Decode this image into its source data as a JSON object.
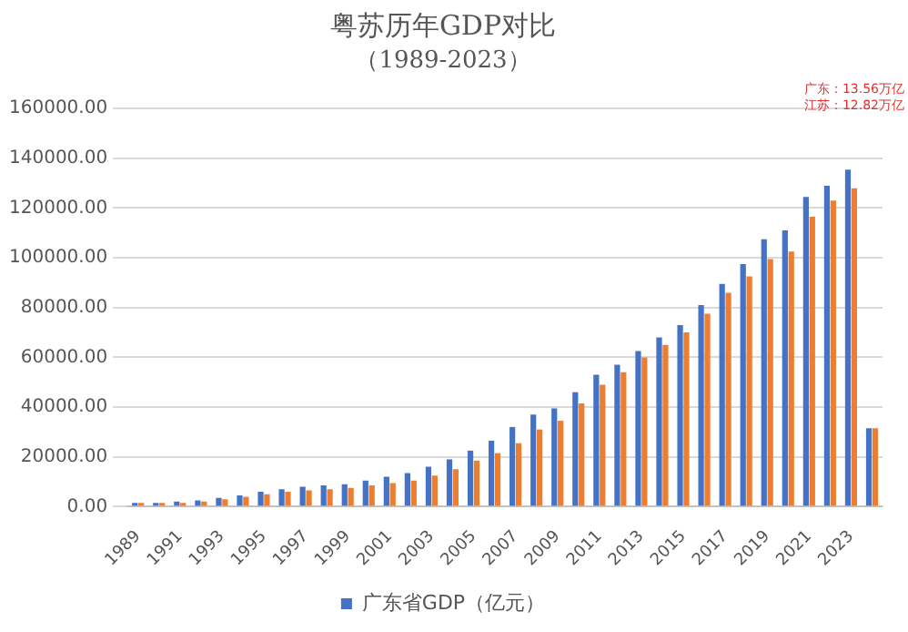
{
  "chart_data": {
    "type": "bar",
    "title": "粤苏历年GDP对比",
    "subtitle": "（1989-2023）",
    "categories": [
      "1989",
      null,
      "1991",
      null,
      "1993",
      null,
      "1995",
      null,
      "1997",
      null,
      "1999",
      null,
      "2001",
      null,
      "2003",
      null,
      "2005",
      null,
      "2007",
      null,
      "2009",
      null,
      "2011",
      null,
      "2013",
      null,
      "2015",
      null,
      "2017",
      null,
      "2019",
      null,
      "2021",
      null,
      "2023",
      null
    ],
    "series": [
      {
        "name": "广东省GDP（亿元）",
        "color": "#4472c4",
        "values": [
          1500,
          1500,
          2000,
          2500,
          3500,
          4500,
          6000,
          7000,
          8000,
          8500,
          9000,
          10500,
          12000,
          13500,
          16000,
          19000,
          22500,
          26500,
          32000,
          37000,
          39500,
          46000,
          53000,
          57000,
          62500,
          68000,
          73000,
          81000,
          89500,
          97500,
          107500,
          111000,
          124500,
          129000,
          135500,
          31500
        ]
      },
      {
        "color": "#ed7d31",
        "values": [
          1500,
          1500,
          1500,
          2000,
          3000,
          4000,
          5000,
          6000,
          6500,
          7000,
          7500,
          8500,
          9500,
          10500,
          12500,
          15000,
          18500,
          21500,
          25500,
          31000,
          34500,
          41500,
          49000,
          54000,
          60000,
          65000,
          70000,
          77500,
          86000,
          92500,
          99500,
          102500,
          116500,
          123000,
          128000,
          31500
        ]
      }
    ],
    "ylim": [
      0,
      160000
    ],
    "yticks": [
      {
        "value": 0,
        "label": "0.00"
      },
      {
        "value": 20000,
        "label": "20000.00"
      },
      {
        "value": 40000,
        "label": "40000.00"
      },
      {
        "value": 60000,
        "label": "60000.00"
      },
      {
        "value": 80000,
        "label": "80000.00"
      },
      {
        "value": 100000,
        "label": "100000.00"
      },
      {
        "value": 120000,
        "label": "120000.00"
      },
      {
        "value": 140000,
        "label": "140000.00"
      },
      {
        "value": 160000,
        "label": "160000.00"
      }
    ],
    "grid": "y",
    "legend": "bottom",
    "annotations": [
      "广东：13.56万亿",
      "江苏：12.82万亿"
    ]
  }
}
